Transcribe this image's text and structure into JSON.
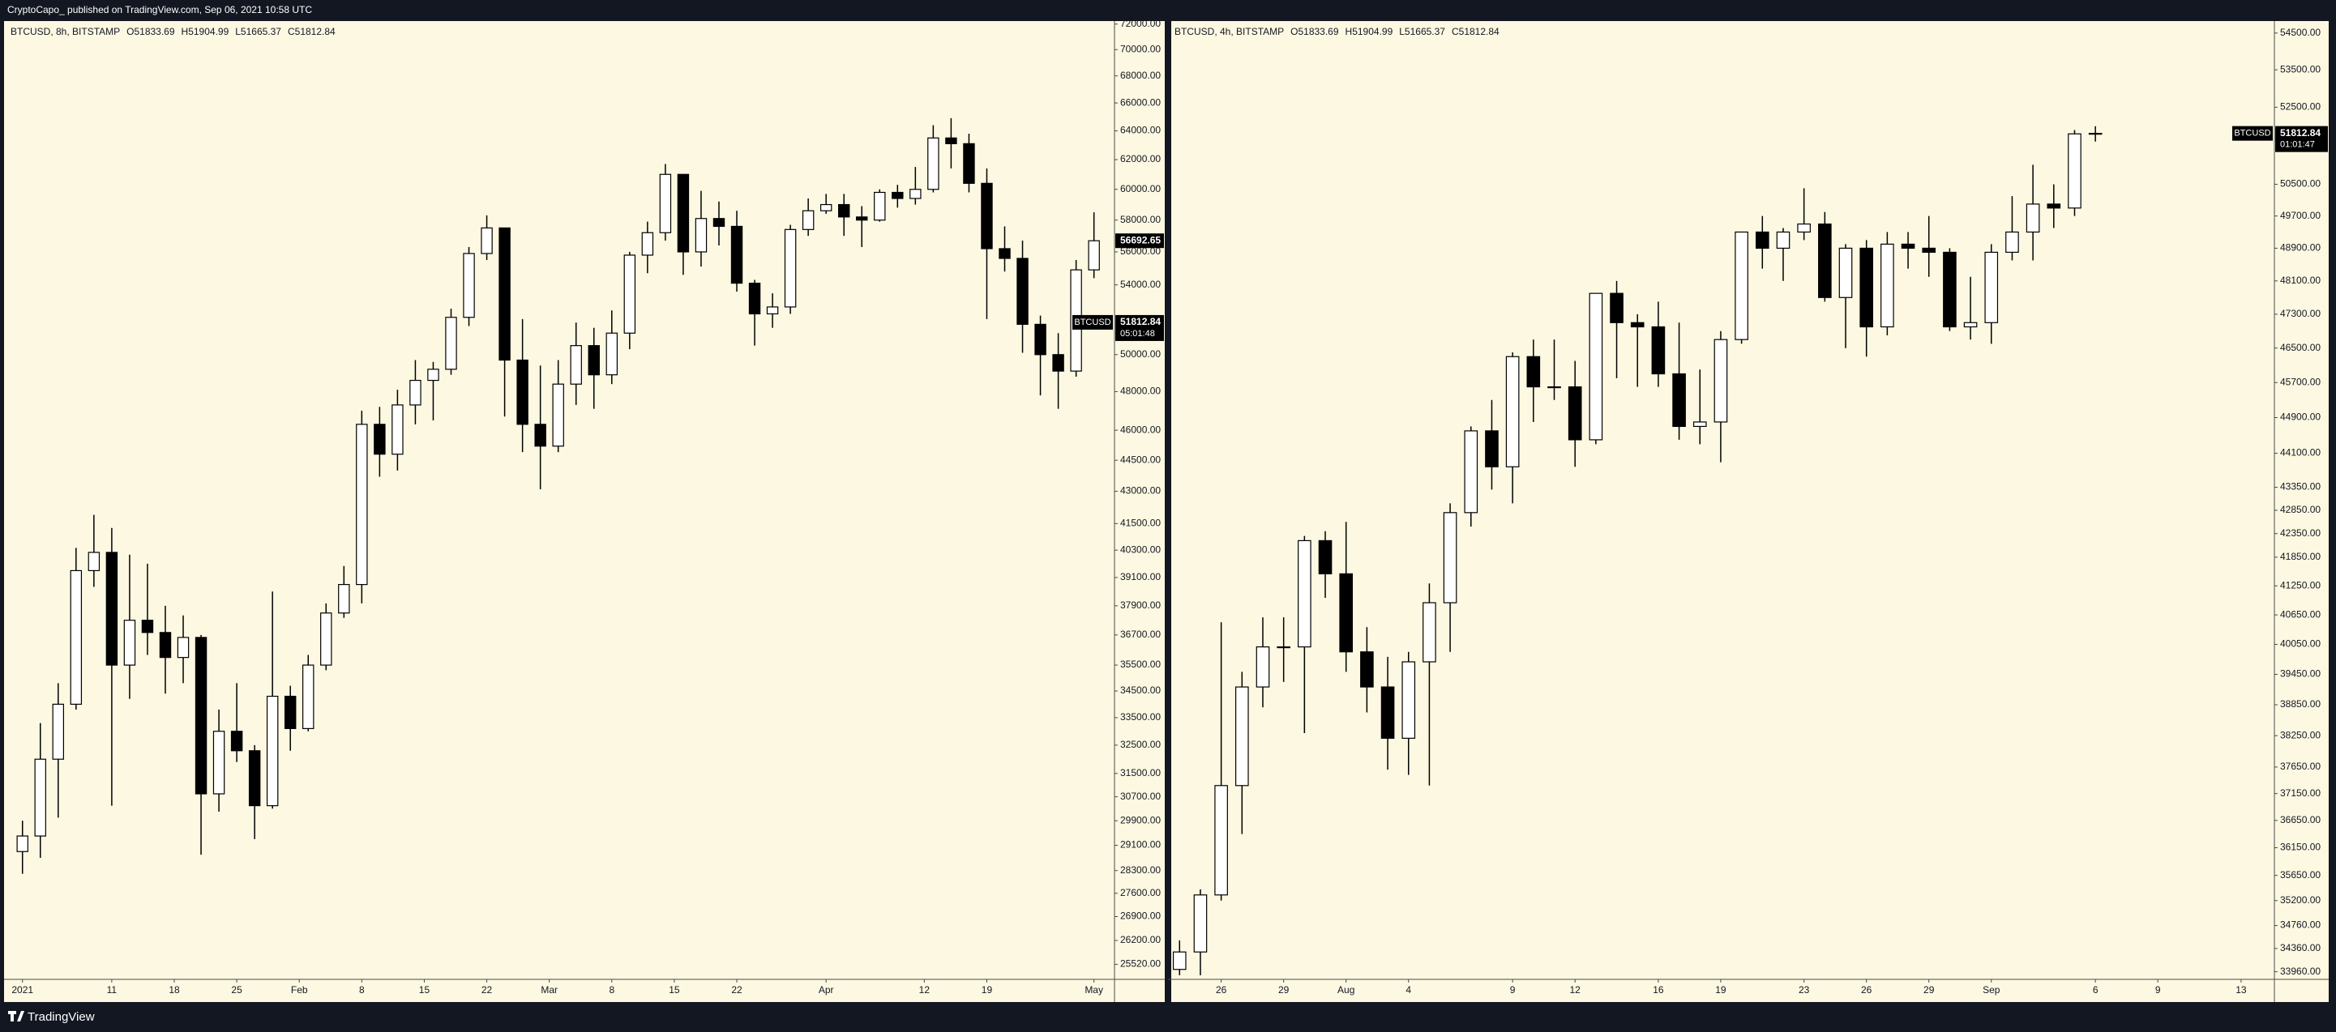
{
  "header": {
    "title": "CryptoCapo_ published on TradingView.com, Sep 06, 2021 10:58 UTC"
  },
  "footer": {
    "brand": "TradingView"
  },
  "chart_data": [
    {
      "type": "candlestick",
      "legend": {
        "symbol": "BTCUSD, 8h, BITSTAMP",
        "open": "O51833.69",
        "high": "H51904.99",
        "low": "L51665.37",
        "close": "C51812.84"
      },
      "x": [
        1,
        3,
        5,
        7,
        9,
        11,
        13,
        15,
        17,
        19,
        21,
        23,
        25,
        27,
        29,
        31,
        33,
        35,
        37,
        39,
        41,
        43,
        45,
        47,
        49,
        51,
        53,
        55,
        57,
        59,
        61,
        63,
        65,
        67,
        69,
        71,
        73,
        75,
        77,
        79,
        81,
        83,
        85,
        87,
        89,
        91,
        93,
        95,
        97,
        99,
        101,
        103,
        105,
        107,
        109,
        111,
        113,
        115,
        117,
        119,
        121
      ],
      "open": [
        28900,
        29400,
        32000,
        34000,
        39400,
        40200,
        35500,
        37300,
        36800,
        35800,
        36600,
        30800,
        33000,
        32300,
        30400,
        34300,
        33100,
        35500,
        37600,
        38800,
        46300,
        44800,
        47300,
        48600,
        49200,
        52100,
        55900,
        57500,
        49700,
        46300,
        45200,
        48400,
        50500,
        48900,
        51200,
        55800,
        57200,
        61000,
        56000,
        58100,
        57600,
        54100,
        52300,
        52700,
        57400,
        58600,
        59000,
        58200,
        58000,
        59800,
        59400,
        60000,
        63500,
        63100,
        60400,
        56200,
        55600,
        51700,
        50000,
        49100,
        54900
      ],
      "high": [
        29900,
        33300,
        34800,
        40400,
        41900,
        41300,
        40100,
        39700,
        37900,
        37500,
        36700,
        33800,
        34800,
        32500,
        38500,
        34700,
        35900,
        38000,
        39600,
        47000,
        47200,
        48100,
        49700,
        49600,
        52600,
        56300,
        58300,
        57500,
        52000,
        49400,
        49700,
        51800,
        51500,
        52500,
        56000,
        57900,
        61700,
        61000,
        59900,
        59200,
        58600,
        54300,
        53500,
        57700,
        59400,
        59700,
        59700,
        58900,
        60000,
        60300,
        61500,
        64400,
        64900,
        63800,
        61400,
        57600,
        56700,
        52200,
        51200,
        55500,
        58500
      ],
      "low": [
        28200,
        28700,
        30000,
        33800,
        38700,
        30400,
        34200,
        35900,
        34400,
        34800,
        28800,
        30200,
        31900,
        29300,
        30300,
        32300,
        33000,
        35300,
        37400,
        38000,
        43700,
        44000,
        46300,
        46500,
        48900,
        51600,
        55500,
        46700,
        44900,
        43100,
        44900,
        47300,
        47100,
        48400,
        50300,
        54700,
        56700,
        54600,
        55100,
        56400,
        53600,
        50500,
        51500,
        52300,
        57000,
        58400,
        57000,
        56300,
        57900,
        58800,
        59000,
        59800,
        61400,
        59800,
        52000,
        54800,
        50100,
        47800,
        47100,
        48800,
        54400
      ],
      "close": [
        29400,
        32000,
        34000,
        39400,
        40200,
        35500,
        37300,
        36800,
        35800,
        36600,
        30800,
        33000,
        32300,
        30400,
        34300,
        33100,
        35500,
        37600,
        38800,
        46300,
        44800,
        47300,
        48600,
        49200,
        52100,
        55900,
        57500,
        49700,
        46300,
        45200,
        48400,
        50500,
        48900,
        51200,
        55800,
        57200,
        61000,
        56000,
        58100,
        57600,
        54100,
        52300,
        52700,
        57400,
        58600,
        59000,
        58200,
        58000,
        59800,
        59400,
        60000,
        63500,
        63100,
        60400,
        56200,
        55600,
        51700,
        50000,
        49100,
        54900,
        56692.65
      ],
      "up_color": "#ffffff",
      "down_color": "#000000",
      "wick_color": "#000000",
      "log_scale": true,
      "grid": false,
      "xlim": [
        -0.7,
        123.3
      ],
      "xticks": [
        {
          "value": 1,
          "label": "2021"
        },
        11,
        18,
        25,
        {
          "value": 32,
          "label": "Feb"
        },
        {
          "value": 39,
          "label": "8"
        },
        {
          "value": 46,
          "label": "15"
        },
        {
          "value": 53,
          "label": "22"
        },
        {
          "value": 60,
          "label": "Mar"
        },
        {
          "value": 67,
          "label": "8"
        },
        {
          "value": 74,
          "label": "15"
        },
        {
          "value": 81,
          "label": "22"
        },
        {
          "value": 91,
          "label": "Apr"
        },
        {
          "value": 102,
          "label": "12"
        },
        {
          "value": 109,
          "label": "19"
        },
        {
          "value": 121,
          "label": "May"
        }
      ],
      "ylim": [
        25100,
        72240
      ],
      "yticks": [
        {
          "value": 72000,
          "label": "72000.00"
        },
        {
          "value": 70000,
          "label": "70000.00"
        },
        {
          "value": 68000,
          "label": "68000.00"
        },
        {
          "value": 66000,
          "label": "66000.00"
        },
        {
          "value": 64000,
          "label": "64000.00"
        },
        {
          "value": 62000,
          "label": "62000.00"
        },
        {
          "value": 60000,
          "label": "60000.00"
        },
        {
          "value": 58000,
          "label": "58000.00"
        },
        {
          "value": 56000,
          "label": "56000.00"
        },
        {
          "value": 54000,
          "label": "54000.00"
        },
        {
          "value": 50000,
          "label": "50000.00"
        },
        {
          "value": 48000,
          "label": "48000.00"
        },
        {
          "value": 46000,
          "label": "46000.00"
        },
        {
          "value": 44500,
          "label": "44500.00"
        },
        {
          "value": 43000,
          "label": "43000.00"
        },
        {
          "value": 41500,
          "label": "41500.00"
        },
        {
          "value": 40300,
          "label": "40300.00"
        },
        {
          "value": 39100,
          "label": "39100.00"
        },
        {
          "value": 37900,
          "label": "37900.00"
        },
        {
          "value": 36700,
          "label": "36700.00"
        },
        {
          "value": 35500,
          "label": "35500.00"
        },
        {
          "value": 34500,
          "label": "34500.00"
        },
        {
          "value": 33500,
          "label": "33500.00"
        },
        {
          "value": 32500,
          "label": "32500.00"
        },
        {
          "value": 31500,
          "label": "31500.00"
        },
        {
          "value": 30700,
          "label": "30700.00"
        },
        {
          "value": 29900,
          "label": "29900.00"
        },
        {
          "value": 29100,
          "label": "29100.00"
        },
        {
          "value": 28300,
          "label": "28300.00"
        },
        {
          "value": 27600,
          "label": "27600.00"
        },
        {
          "value": 26900,
          "label": "26900.00"
        },
        {
          "value": 26200,
          "label": "26200.00"
        },
        {
          "value": 25520,
          "label": "25520.00"
        }
      ],
      "last_value": 56692.65,
      "price_label": {
        "symbol": "BTCUSD",
        "value": 51812.84,
        "countdown": "05:01:48"
      }
    },
    {
      "type": "candlestick",
      "legend": {
        "symbol": "BTCUSD, 4h, BITSTAMP",
        "open": "O51833.69",
        "high": "H51904.99",
        "low": "L51665.37",
        "close": "C51812.84"
      },
      "x": [
        205,
        206,
        207,
        208,
        209,
        210,
        211,
        212,
        213,
        214,
        215,
        216,
        217,
        218,
        219,
        220,
        221,
        222,
        223,
        224,
        225,
        226,
        227,
        228,
        229,
        230,
        231,
        232,
        233,
        234,
        235,
        236,
        237,
        238,
        239,
        240,
        241,
        242,
        243,
        244,
        245,
        246,
        247,
        248,
        249
      ],
      "open": [
        34000,
        34300,
        35300,
        37300,
        39200,
        40000,
        40000,
        42200,
        41500,
        39900,
        39200,
        38200,
        39700,
        40900,
        42800,
        44600,
        43800,
        46300,
        45600,
        45600,
        44400,
        47800,
        47100,
        47000,
        45900,
        44700,
        44800,
        46700,
        49300,
        48900,
        49300,
        49500,
        47700,
        48900,
        47000,
        49000,
        48900,
        48800,
        47000,
        47100,
        48800,
        49300,
        50000,
        49900,
        51800
      ],
      "high": [
        34500,
        35400,
        40500,
        39500,
        40600,
        40600,
        42300,
        42400,
        42600,
        40400,
        39800,
        39900,
        41300,
        43000,
        44700,
        45300,
        46400,
        46700,
        46700,
        46200,
        47800,
        48100,
        47300,
        47600,
        47100,
        46000,
        46900,
        49300,
        49700,
        49400,
        50400,
        49800,
        49000,
        49100,
        49300,
        49300,
        49700,
        48900,
        48200,
        49000,
        50200,
        51000,
        50500,
        51900,
        52000
      ],
      "low": [
        33900,
        33900,
        35200,
        36400,
        38800,
        39300,
        38300,
        41000,
        39500,
        38700,
        37600,
        37500,
        37300,
        39900,
        42500,
        43300,
        43000,
        44800,
        45300,
        43800,
        44300,
        45800,
        45600,
        45600,
        44400,
        44300,
        43900,
        46600,
        48400,
        48100,
        49100,
        47600,
        46500,
        46300,
        46800,
        48400,
        48200,
        46900,
        46700,
        46600,
        48600,
        48600,
        49400,
        49700,
        51600
      ],
      "close": [
        34300,
        35300,
        37300,
        39200,
        40000,
        40000,
        42200,
        41500,
        39900,
        39200,
        38200,
        39700,
        40900,
        42800,
        44600,
        43800,
        46300,
        45600,
        45600,
        44400,
        47800,
        47100,
        47000,
        45900,
        44700,
        44800,
        46700,
        49300,
        48900,
        49300,
        49500,
        47700,
        48900,
        47000,
        49000,
        48900,
        48800,
        47000,
        47100,
        48800,
        49300,
        50000,
        49900,
        51800,
        51812.84
      ],
      "up_color": "#ffffff",
      "down_color": "#000000",
      "wick_color": "#000000",
      "log_scale": true,
      "grid": false,
      "xlim": [
        204.6,
        257.6
      ],
      "xticks": [
        {
          "value": 207,
          "label": "26"
        },
        {
          "value": 210,
          "label": "29"
        },
        {
          "value": 213,
          "label": "Aug"
        },
        {
          "value": 216,
          "label": "4"
        },
        {
          "value": 221,
          "label": "9"
        },
        {
          "value": 224,
          "label": "12"
        },
        {
          "value": 228,
          "label": "16"
        },
        {
          "value": 231,
          "label": "19"
        },
        {
          "value": 235,
          "label": "23"
        },
        {
          "value": 238,
          "label": "26"
        },
        {
          "value": 241,
          "label": "29"
        },
        {
          "value": 244,
          "label": "Sep"
        },
        {
          "value": 249,
          "label": "6"
        },
        {
          "value": 252,
          "label": "9"
        },
        {
          "value": 256,
          "label": "13"
        }
      ],
      "ylim": [
        33830,
        54830
      ],
      "yticks": [
        {
          "value": 54500,
          "label": "54500.00"
        },
        {
          "value": 53500,
          "label": "53500.00"
        },
        {
          "value": 52500,
          "label": "52500.00"
        },
        {
          "value": 50500,
          "label": "50500.00"
        },
        {
          "value": 49700,
          "label": "49700.00"
        },
        {
          "value": 48900,
          "label": "48900.00"
        },
        {
          "value": 48100,
          "label": "48100.00"
        },
        {
          "value": 47300,
          "label": "47300.00"
        },
        {
          "value": 46500,
          "label": "46500.00"
        },
        {
          "value": 45700,
          "label": "45700.00"
        },
        {
          "value": 44900,
          "label": "44900.00"
        },
        {
          "value": 44100,
          "label": "44100.00"
        },
        {
          "value": 43350,
          "label": "43350.00"
        },
        {
          "value": 42850,
          "label": "42850.00"
        },
        {
          "value": 42350,
          "label": "42350.00"
        },
        {
          "value": 41850,
          "label": "41850.00"
        },
        {
          "value": 41250,
          "label": "41250.00"
        },
        {
          "value": 40650,
          "label": "40650.00"
        },
        {
          "value": 40050,
          "label": "40050.00"
        },
        {
          "value": 39450,
          "label": "39450.00"
        },
        {
          "value": 38850,
          "label": "38850.00"
        },
        {
          "value": 38250,
          "label": "38250.00"
        },
        {
          "value": 37650,
          "label": "37650.00"
        },
        {
          "value": 37150,
          "label": "37150.00"
        },
        {
          "value": 36650,
          "label": "36650.00"
        },
        {
          "value": 36150,
          "label": "36150.00"
        },
        {
          "value": 35650,
          "label": "35650.00"
        },
        {
          "value": 35200,
          "label": "35200.00"
        },
        {
          "value": 34760,
          "label": "34760.00"
        },
        {
          "value": 34360,
          "label": "34360.00"
        },
        {
          "value": 33960,
          "label": "33960.00"
        }
      ],
      "price_label": {
        "symbol": "BTCUSD",
        "value": 51812.84,
        "countdown": "01:01:47"
      }
    }
  ]
}
